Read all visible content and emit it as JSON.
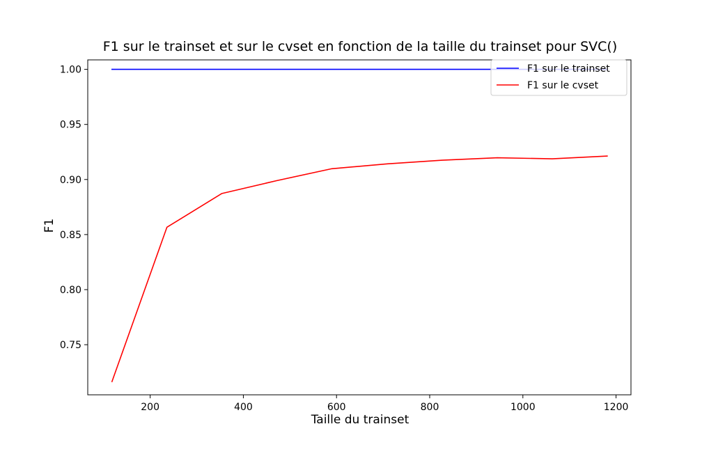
{
  "chart_data": {
    "type": "line",
    "title": "F1 sur le trainset et sur le cvset en fonction de la taille du trainset pour SVC()",
    "xlabel": "Taille du trainset",
    "ylabel": "F1",
    "xlim": [
      66,
      1232
    ],
    "ylim": [
      0.7045,
      1.0086
    ],
    "xticks": [
      200,
      400,
      600,
      800,
      1000,
      1200
    ],
    "xtick_labels": [
      "200",
      "400",
      "600",
      "800",
      "1000",
      "1200"
    ],
    "yticks": [
      0.75,
      0.8,
      0.85,
      0.9,
      0.95,
      1.0
    ],
    "ytick_labels": [
      "0.75",
      "0.80",
      "0.85",
      "0.90",
      "0.95",
      "1.00"
    ],
    "grid": false,
    "legend_position": "upper right",
    "x": [
      118,
      236,
      354,
      472,
      590,
      709,
      827,
      945,
      1063,
      1181
    ],
    "series": [
      {
        "name": "F1 sur le trainset",
        "color": "#0000ff",
        "values": [
          1.0,
          1.0,
          1.0,
          1.0,
          1.0,
          1.0,
          1.0,
          1.0,
          1.0,
          1.0
        ]
      },
      {
        "name": "F1 sur le cvset",
        "color": "#ff0000",
        "values": [
          0.7165,
          0.8567,
          0.8873,
          0.899,
          0.9098,
          0.9142,
          0.9175,
          0.9197,
          0.9188,
          0.9213
        ]
      }
    ]
  }
}
